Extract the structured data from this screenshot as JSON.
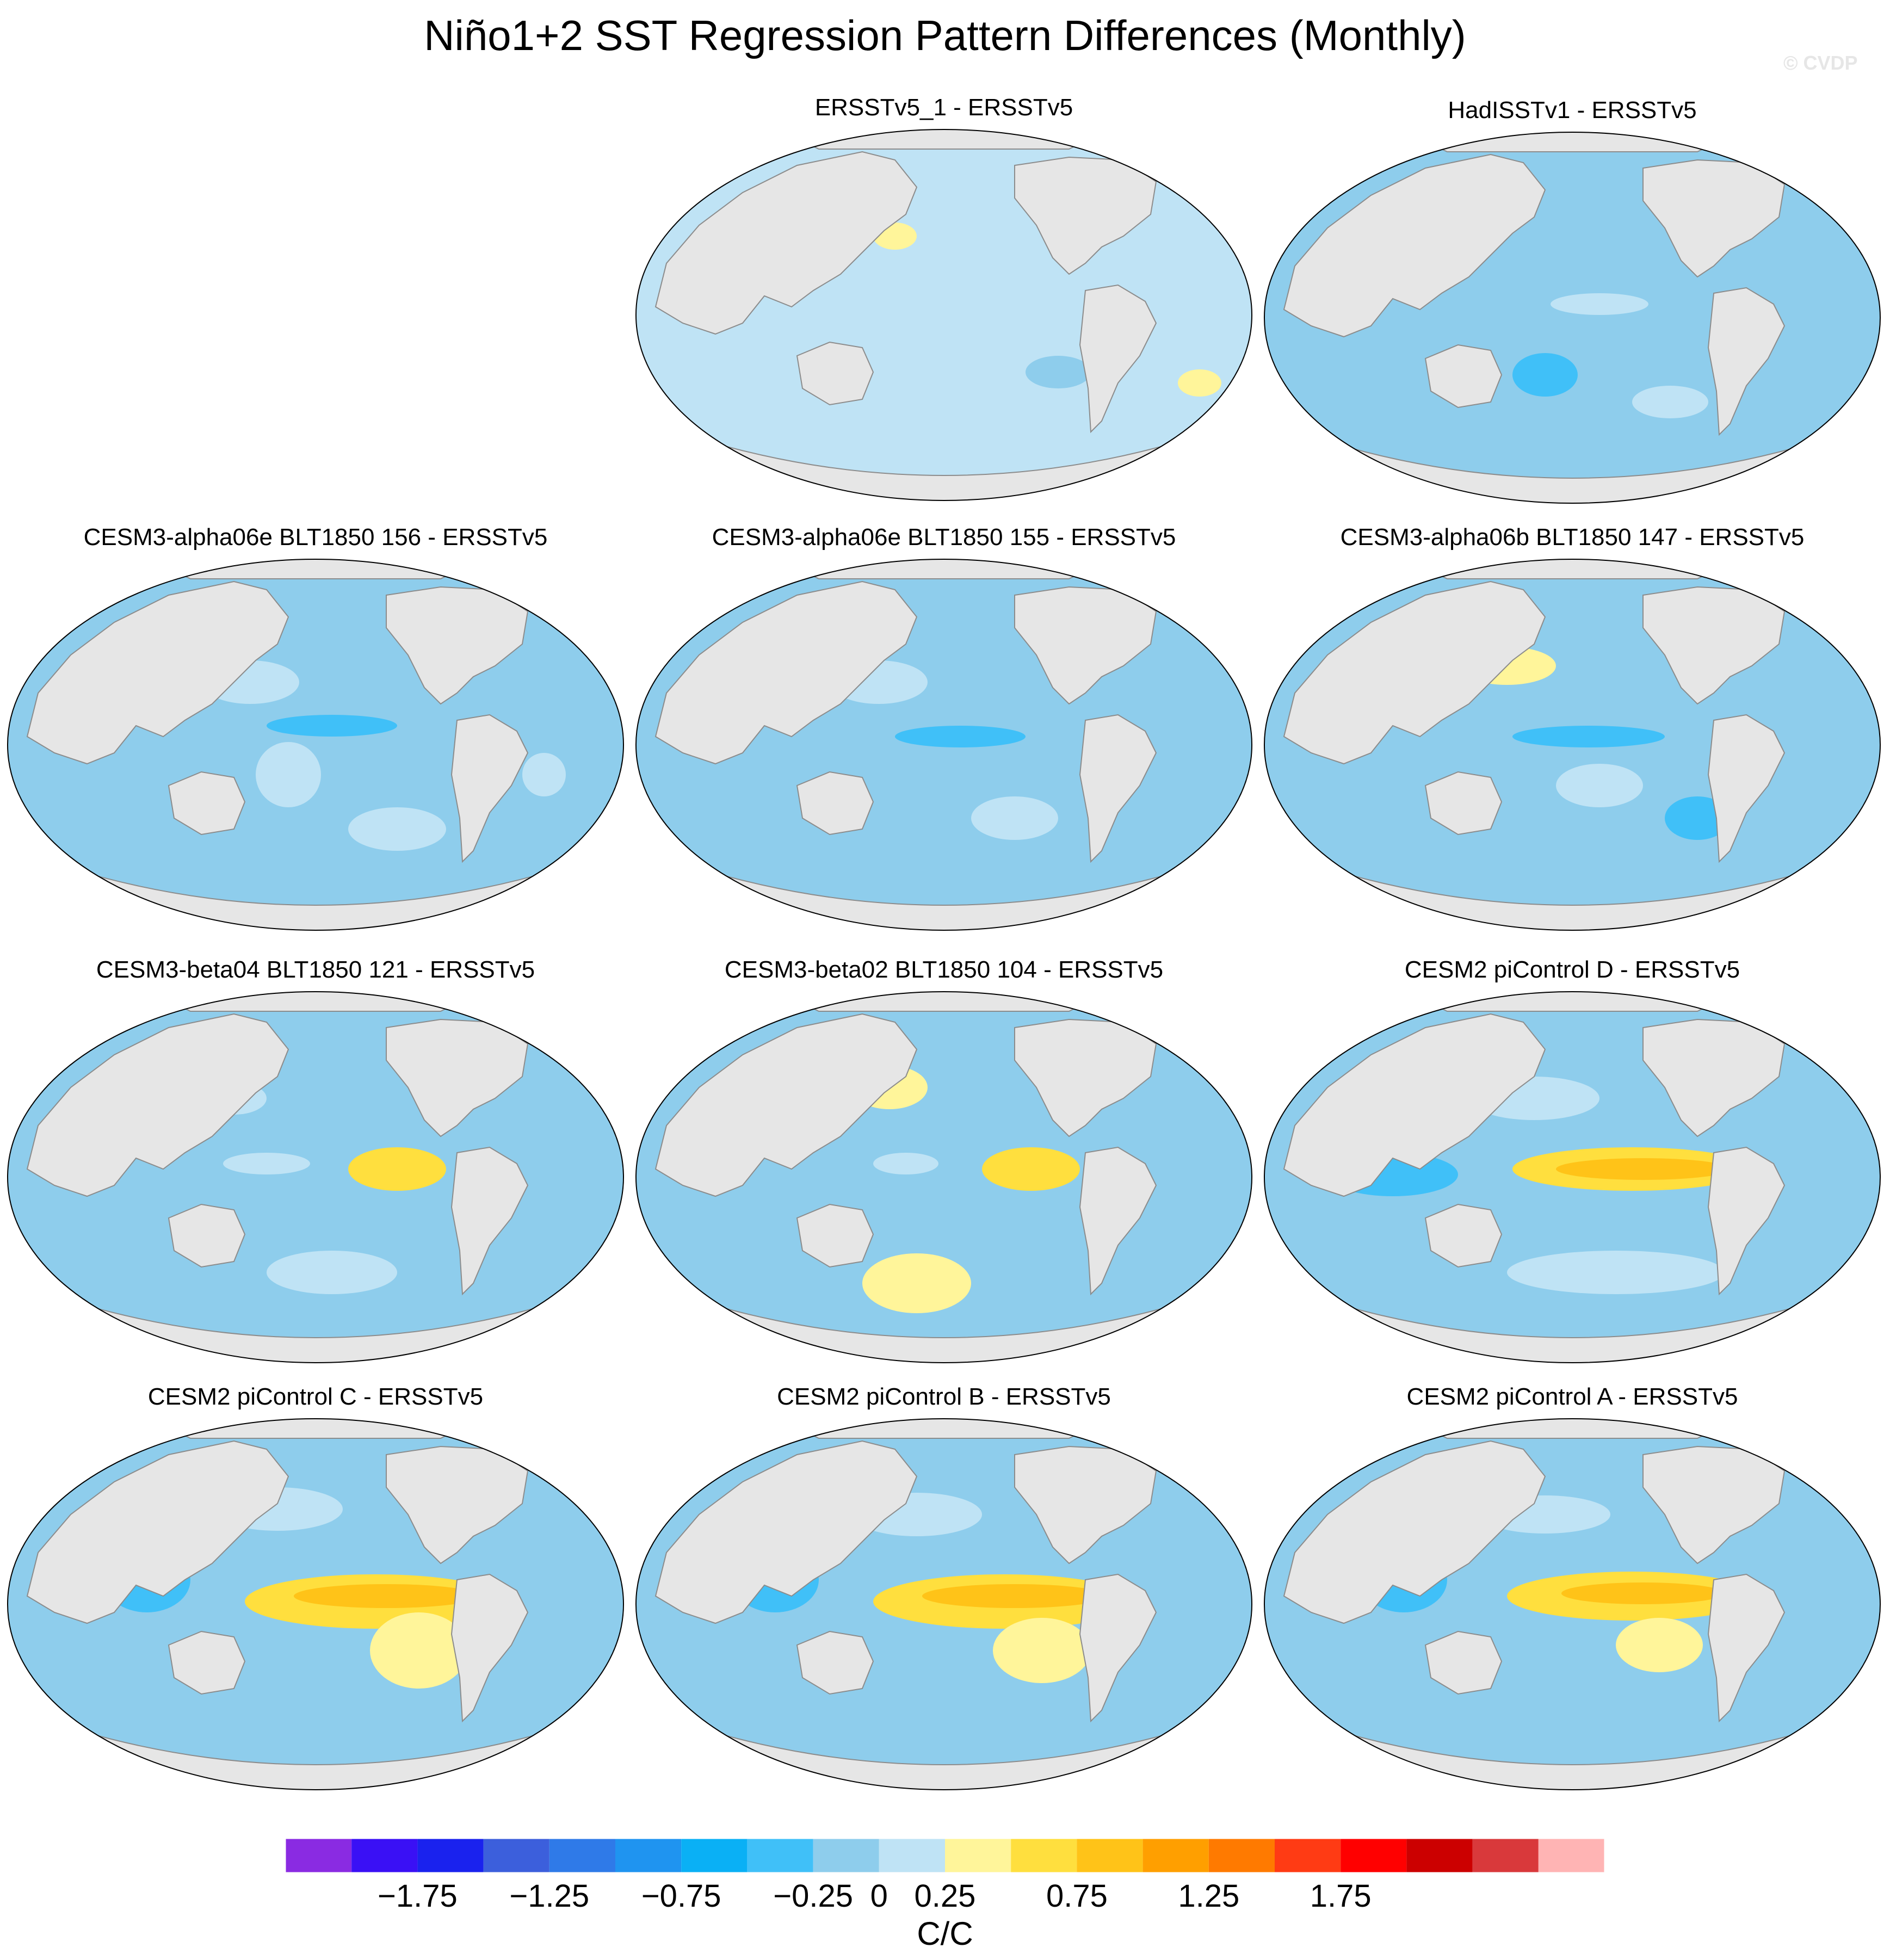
{
  "title": "Niño1+2 SST Regression Pattern Differences (Monthly)",
  "watermark": "© CVDP",
  "chart_data": {
    "type": "heatmap",
    "projection": "Robinson (Pacific-centered)",
    "title": "Niño1+2 SST Regression Pattern Differences (Monthly)",
    "panels": [
      {
        "title": "ERSSTv5_1 - ERSSTv5",
        "dominant_value": 0.125,
        "tropical_pacific_max": 0.25
      },
      {
        "title": "HadISSTv1 - ERSSTv5",
        "dominant_value": -0.125,
        "tropical_pacific_max": 0.125
      },
      {
        "title": "CESM3-alpha06e BLT1850 156 - ERSSTv5",
        "dominant_value": -0.125,
        "tropical_pacific_max": 0.375
      },
      {
        "title": "CESM3-alpha06e BLT1850 155 - ERSSTv5",
        "dominant_value": -0.125,
        "tropical_pacific_max": 0.375
      },
      {
        "title": "CESM3-alpha06b BLT1850 147 - ERSSTv5",
        "dominant_value": -0.125,
        "tropical_pacific_max": 0.375
      },
      {
        "title": "CESM3-beta04 BLT1850 121 - ERSSTv5",
        "dominant_value": -0.125,
        "tropical_pacific_max": 0.625
      },
      {
        "title": "CESM3-beta02 BLT1850 104 - ERSSTv5",
        "dominant_value": -0.125,
        "tropical_pacific_max": 0.625
      },
      {
        "title": "CESM2 piControl D - ERSSTv5",
        "dominant_value": -0.125,
        "tropical_pacific_max": 0.875
      },
      {
        "title": "CESM2 piControl C - ERSSTv5",
        "dominant_value": -0.125,
        "tropical_pacific_max": 0.875
      },
      {
        "title": "CESM2 piControl B - ERSSTv5",
        "dominant_value": -0.125,
        "tropical_pacific_max": 0.875
      },
      {
        "title": "CESM2 piControl A - ERSSTv5",
        "dominant_value": -0.125,
        "tropical_pacific_max": 0.875
      }
    ],
    "colorbar": {
      "levels": [
        -2.0,
        -1.75,
        -1.5,
        -1.25,
        -1.0,
        -0.75,
        -0.5,
        -0.25,
        0,
        0.25,
        0.5,
        0.75,
        1.0,
        1.25,
        1.5,
        1.75,
        2.0
      ],
      "colors": [
        "#8a2be2",
        "#3a10f5",
        "#1a22ee",
        "#3c5fdc",
        "#2f7ae8",
        "#1f94f0",
        "#0ab0f5",
        "#40c0f8",
        "#8ecdec",
        "#bfe3f5",
        "#fff59a",
        "#ffdf3e",
        "#ffc318",
        "#ff9f00",
        "#ff7a00",
        "#ff3b14",
        "#ff0000",
        "#cc0000",
        "#d9393b",
        "#ffb4b4"
      ],
      "tick_labels": [
        "-1.75",
        "-1.25",
        "-0.75",
        "-0.25",
        "0",
        "0.25",
        "0.75",
        "1.25",
        "1.75"
      ],
      "unit": "C/C"
    },
    "land_color": "#e6e6e6",
    "coast_color": "#8c8c8c"
  }
}
